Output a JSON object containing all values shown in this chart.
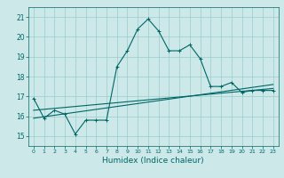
{
  "xlabel": "Humidex (Indice chaleur)",
  "background_color": "#cce8e8",
  "grid_color": "#99cccc",
  "line_color": "#006666",
  "x_min": -0.5,
  "x_max": 23.5,
  "y_min": 14.5,
  "y_max": 21.5,
  "yticks": [
    15,
    16,
    17,
    18,
    19,
    20,
    21
  ],
  "xticks": [
    0,
    1,
    2,
    3,
    4,
    5,
    6,
    7,
    8,
    9,
    10,
    11,
    12,
    13,
    14,
    15,
    16,
    17,
    18,
    19,
    20,
    21,
    22,
    23
  ],
  "line1_x": [
    0,
    1,
    2,
    3,
    4,
    5,
    6,
    7,
    8,
    9,
    10,
    11,
    12,
    13,
    14,
    15,
    16,
    17,
    18,
    19,
    20,
    21,
    22,
    23
  ],
  "line1_y": [
    16.9,
    15.9,
    16.3,
    16.1,
    15.1,
    15.8,
    15.8,
    15.8,
    18.5,
    19.3,
    20.4,
    20.9,
    20.3,
    19.3,
    19.3,
    19.6,
    18.9,
    17.5,
    17.5,
    17.7,
    17.2,
    17.3,
    17.3,
    17.3
  ],
  "line2_x": [
    0,
    23
  ],
  "line2_y": [
    16.3,
    17.4
  ],
  "line3_x": [
    0,
    23
  ],
  "line3_y": [
    15.9,
    17.6
  ],
  "marker": "+"
}
